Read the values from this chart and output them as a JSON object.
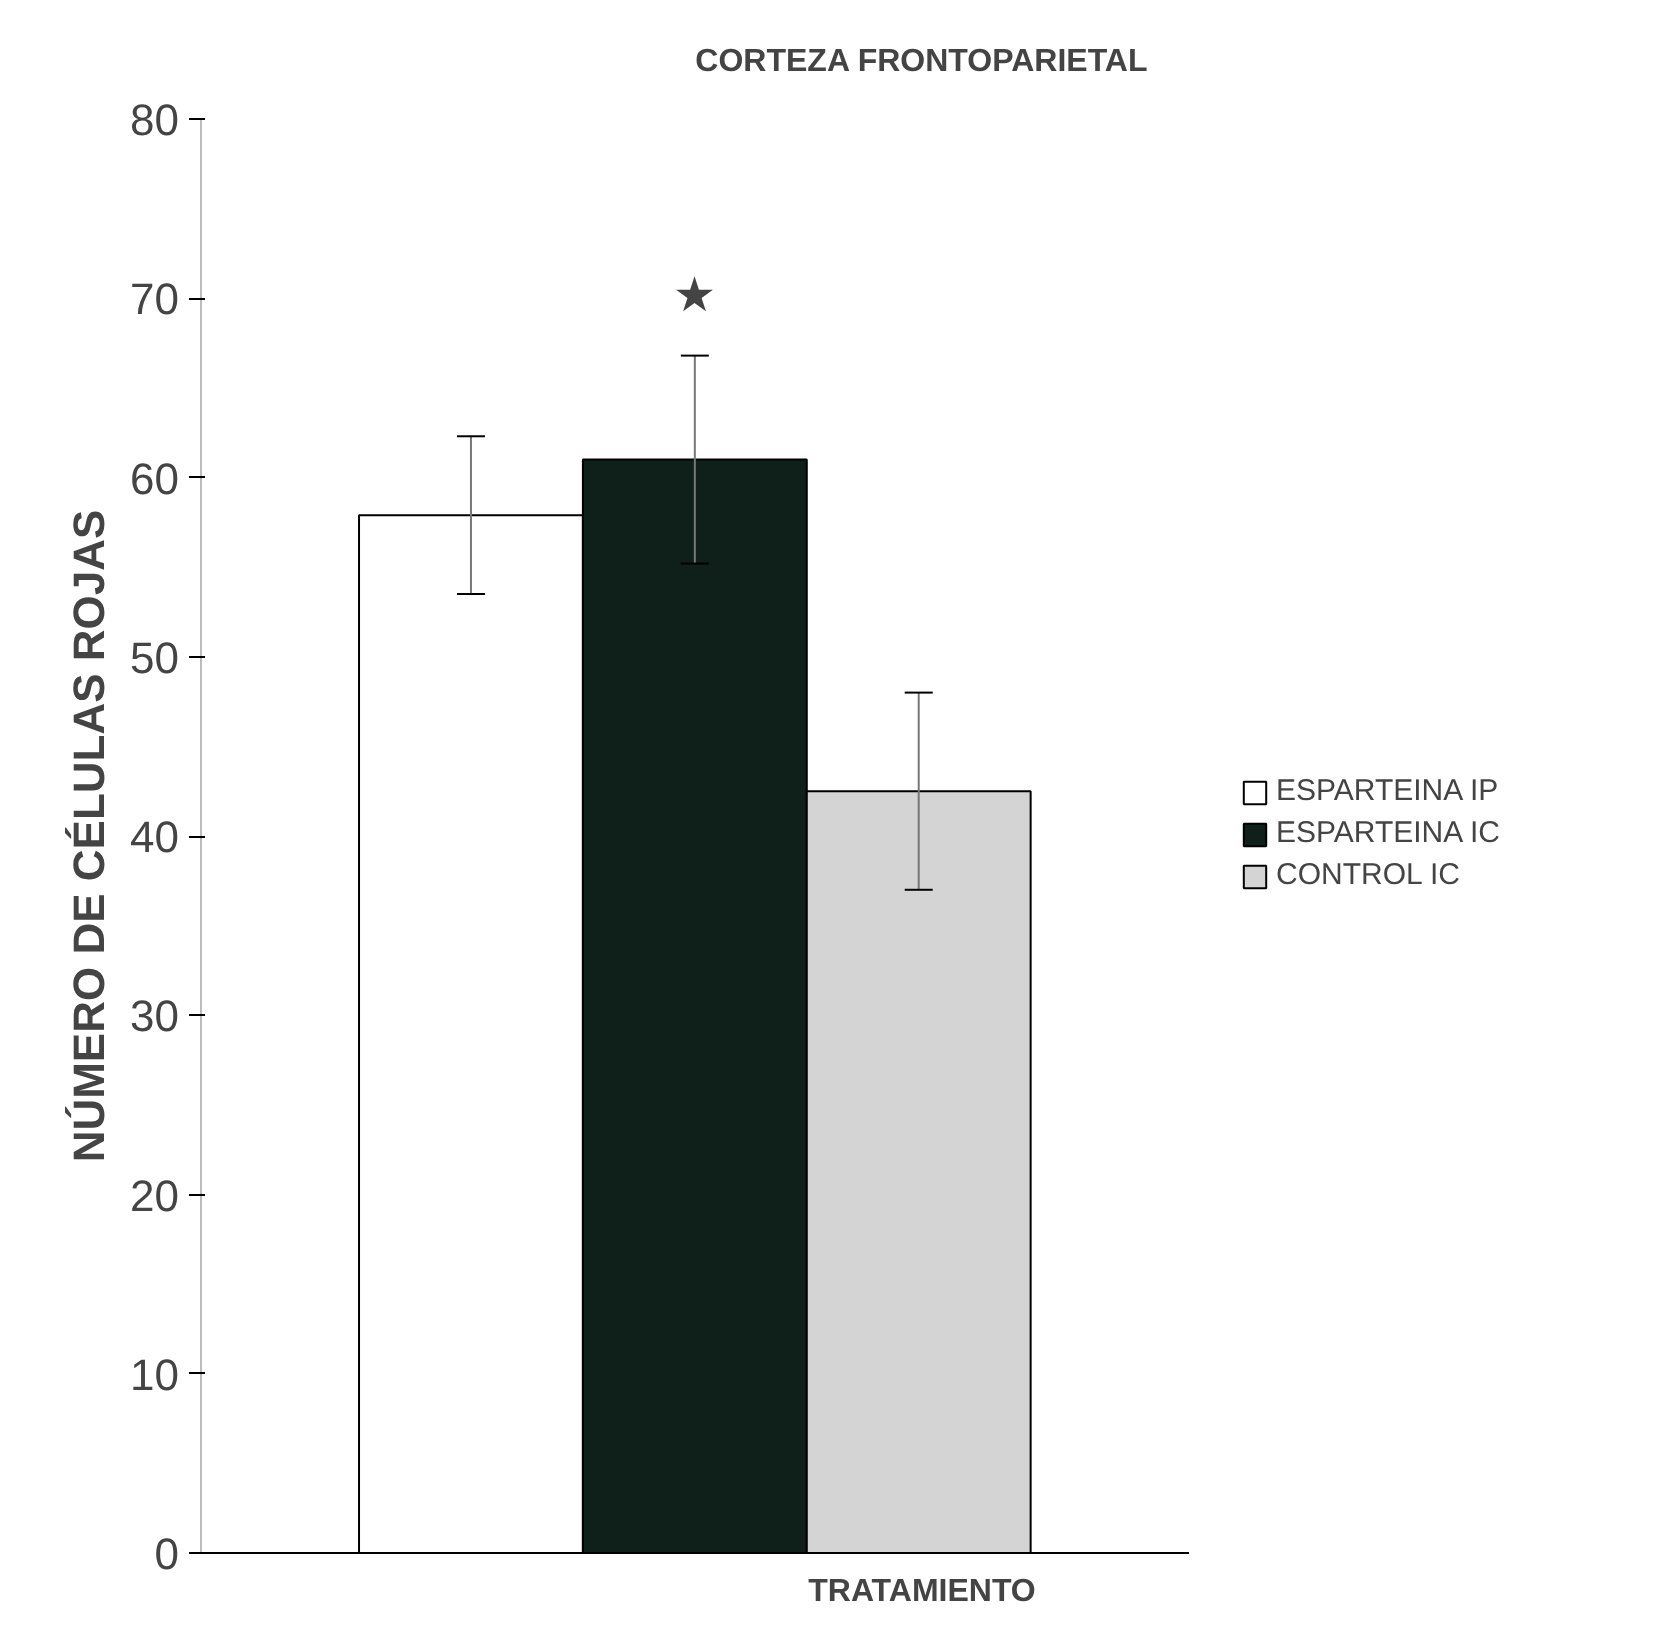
{
  "chart_data": {
    "type": "bar",
    "title": "CORTEZA FRONTOPARIETAL",
    "xlabel": "TRATAMIENTO",
    "ylabel": "NÚMERO DE CÉLULAS ROJAS",
    "categories": [
      null
    ],
    "series": [
      {
        "name": "ESPARTEINA IP",
        "color": "#ffffff",
        "values": [
          57.9
        ],
        "errors": [
          4.4
        ]
      },
      {
        "name": "ESPARTEINA IC",
        "color": "#0f1f1a",
        "values": [
          61
        ],
        "errors": [
          5.8
        ]
      },
      {
        "name": "CONTROL IC",
        "color": "#d4d4d4",
        "values": [
          42.5
        ],
        "errors": [
          5.5
        ]
      }
    ],
    "annotations": [
      "★"
    ],
    "ylim": [
      0,
      80
    ],
    "yticks": [
      0,
      10,
      20,
      30,
      40,
      50,
      60,
      70,
      80
    ],
    "grid": false,
    "legend": "right"
  }
}
